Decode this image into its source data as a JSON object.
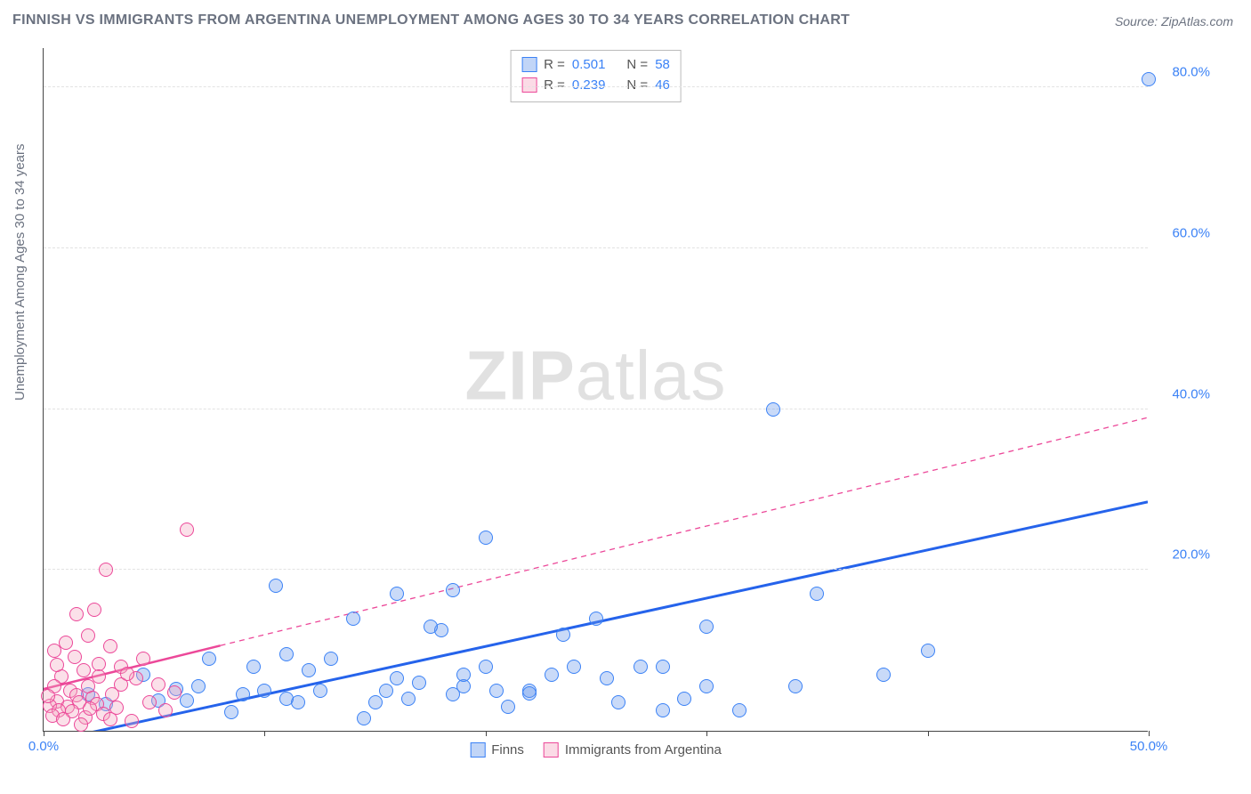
{
  "title": "FINNISH VS IMMIGRANTS FROM ARGENTINA UNEMPLOYMENT AMONG AGES 30 TO 34 YEARS CORRELATION CHART",
  "source": "Source: ZipAtlas.com",
  "ylabel": "Unemployment Among Ages 30 to 34 years",
  "watermark_a": "ZIP",
  "watermark_b": "atlas",
  "chart": {
    "type": "scatter",
    "xlim": [
      0,
      50
    ],
    "ylim": [
      0,
      85
    ],
    "x_ticks": [
      0,
      10,
      20,
      30,
      40,
      50
    ],
    "x_tick_labels": {
      "0": "0.0%",
      "50": "50.0%"
    },
    "y_gridlines": [
      20,
      40,
      60,
      80
    ],
    "y_tick_labels": {
      "20": "20.0%",
      "40": "40.0%",
      "60": "60.0%",
      "80": "80.0%"
    },
    "background_color": "#ffffff",
    "grid_color": "#e2e2e2",
    "axis_color": "#444444",
    "tick_label_color": "#3b82f6",
    "tick_label_fontsize": 15,
    "title_fontsize": 16,
    "title_color": "#6b7280",
    "series": [
      {
        "name": "Finns",
        "color_fill": "rgba(99,149,236,0.35)",
        "color_stroke": "#3b82f6",
        "marker_radius_px": 8,
        "r": 0.501,
        "n": 58,
        "trend": {
          "x0": 0,
          "y0": -1.5,
          "x1": 50,
          "y1": 28.5,
          "stroke": "#2563eb",
          "width": 3,
          "dash": "none"
        },
        "points": [
          [
            50,
            81
          ],
          [
            33,
            40
          ],
          [
            20,
            24
          ],
          [
            35,
            17
          ],
          [
            30,
            13
          ],
          [
            25,
            14
          ],
          [
            40,
            10
          ],
          [
            38,
            7
          ],
          [
            34,
            5.5
          ],
          [
            30,
            5.5
          ],
          [
            29,
            4
          ],
          [
            28,
            2.5
          ],
          [
            26,
            3.5
          ],
          [
            24,
            8
          ],
          [
            23,
            7
          ],
          [
            22,
            5
          ],
          [
            21,
            3
          ],
          [
            20,
            8
          ],
          [
            19,
            5.5
          ],
          [
            18.5,
            17.5
          ],
          [
            18,
            12.5
          ],
          [
            17,
            6
          ],
          [
            16.5,
            4
          ],
          [
            16,
            6.5
          ],
          [
            15,
            3.5
          ],
          [
            14.5,
            1.5
          ],
          [
            13,
            9
          ],
          [
            12.5,
            5
          ],
          [
            11.5,
            3.5
          ],
          [
            11,
            9.5
          ],
          [
            10.5,
            18
          ],
          [
            10,
            5
          ],
          [
            9,
            4.5
          ],
          [
            8.5,
            2.3
          ],
          [
            7.5,
            9
          ],
          [
            7,
            5.5
          ],
          [
            6.5,
            3.8
          ],
          [
            6,
            5.2
          ],
          [
            5.2,
            3.8
          ],
          [
            4.5,
            7
          ],
          [
            2.8,
            3.3
          ],
          [
            2,
            4.5
          ],
          [
            22,
            4.7
          ],
          [
            31.5,
            2.5
          ],
          [
            14,
            14
          ],
          [
            12,
            7.5
          ],
          [
            17.5,
            13
          ],
          [
            16,
            17
          ],
          [
            19,
            7
          ],
          [
            28,
            8
          ],
          [
            11,
            4
          ],
          [
            9.5,
            8
          ],
          [
            23.5,
            12
          ],
          [
            25.5,
            6.5
          ],
          [
            20.5,
            5
          ],
          [
            15.5,
            5
          ],
          [
            18.5,
            4.5
          ],
          [
            27,
            8
          ]
        ]
      },
      {
        "name": "Immigrants from Argentina",
        "color_fill": "rgba(244,166,192,0.35)",
        "color_stroke": "#ec4899",
        "marker_radius_px": 8,
        "r": 0.239,
        "n": 46,
        "trend": {
          "x0": 0,
          "y0": 5.2,
          "x1": 50,
          "y1": 39,
          "stroke": "#ec4899",
          "width": 1.3,
          "dash": "6 5",
          "solid_until_x": 8
        },
        "points": [
          [
            6.5,
            25
          ],
          [
            2.8,
            20
          ],
          [
            2.3,
            15
          ],
          [
            1.5,
            14.5
          ],
          [
            1,
            11
          ],
          [
            3,
            10.5
          ],
          [
            4.5,
            9
          ],
          [
            3.5,
            8
          ],
          [
            2.5,
            8.3
          ],
          [
            1.8,
            7.5
          ],
          [
            0.8,
            6.8
          ],
          [
            0.5,
            5.5
          ],
          [
            1.2,
            5
          ],
          [
            2,
            5.5
          ],
          [
            1.5,
            4.4
          ],
          [
            2.2,
            4.1
          ],
          [
            3.1,
            4.5
          ],
          [
            0.6,
            3.7
          ],
          [
            1.6,
            3.5
          ],
          [
            2.4,
            3.3
          ],
          [
            0.3,
            3.1
          ],
          [
            1.1,
            3
          ],
          [
            3.5,
            5.8
          ],
          [
            0.7,
            2.6
          ],
          [
            1.3,
            2.4
          ],
          [
            4.2,
            6.5
          ],
          [
            2.7,
            2.1
          ],
          [
            0.4,
            1.9
          ],
          [
            1.9,
            1.7
          ],
          [
            3.3,
            2.9
          ],
          [
            0.9,
            1.4
          ],
          [
            2.1,
            2.8
          ],
          [
            5.2,
            5.8
          ],
          [
            5.9,
            4.8
          ],
          [
            0.2,
            4.3
          ],
          [
            4.8,
            3.5
          ],
          [
            2.5,
            6.8
          ],
          [
            0.6,
            8.2
          ],
          [
            3.8,
            7.1
          ],
          [
            1.4,
            9.2
          ],
          [
            3,
            1.4
          ],
          [
            4,
            1.2
          ],
          [
            1.7,
            0.8
          ],
          [
            5.5,
            2.5
          ],
          [
            0.5,
            10
          ],
          [
            2,
            11.8
          ]
        ]
      }
    ]
  },
  "stats_labels": {
    "r": "R =",
    "n": "N ="
  },
  "legend": {
    "finns": "Finns",
    "arg": "Immigrants from Argentina"
  }
}
